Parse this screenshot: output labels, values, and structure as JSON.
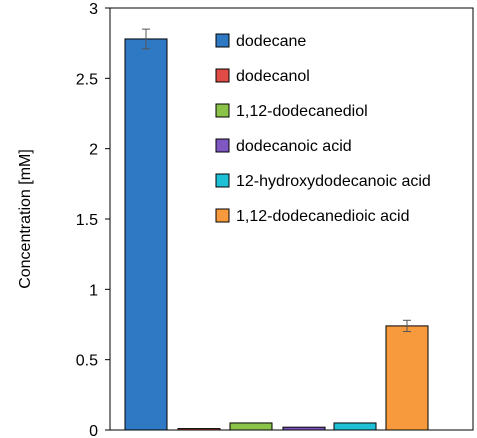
{
  "chart_data": {
    "type": "bar",
    "ylabel": "Concentration [mM]",
    "ylim": [
      0,
      3
    ],
    "yticks": [
      "0",
      "0.5",
      "1",
      "1.5",
      "2",
      "2.5",
      "3"
    ],
    "grid": false,
    "legend_position": "top-right",
    "series": [
      {
        "name": "dodecane",
        "value": 2.78,
        "error": 0.07,
        "color": "#2f78c4"
      },
      {
        "name": "dodecanol",
        "value": 0.01,
        "error": 0.0,
        "color": "#e04c45"
      },
      {
        "name": "1,12-dodecanediol",
        "value": 0.05,
        "error": 0.0,
        "color": "#8bc34a"
      },
      {
        "name": "dodecanoic acid",
        "value": 0.02,
        "error": 0.0,
        "color": "#7e57c2"
      },
      {
        "name": "12-hydroxydodecanoic acid",
        "value": 0.05,
        "error": 0.0,
        "color": "#1ec0d6"
      },
      {
        "name": "1,12-dodecanedioic acid",
        "value": 0.74,
        "error": 0.04,
        "color": "#f79a3e"
      }
    ]
  }
}
